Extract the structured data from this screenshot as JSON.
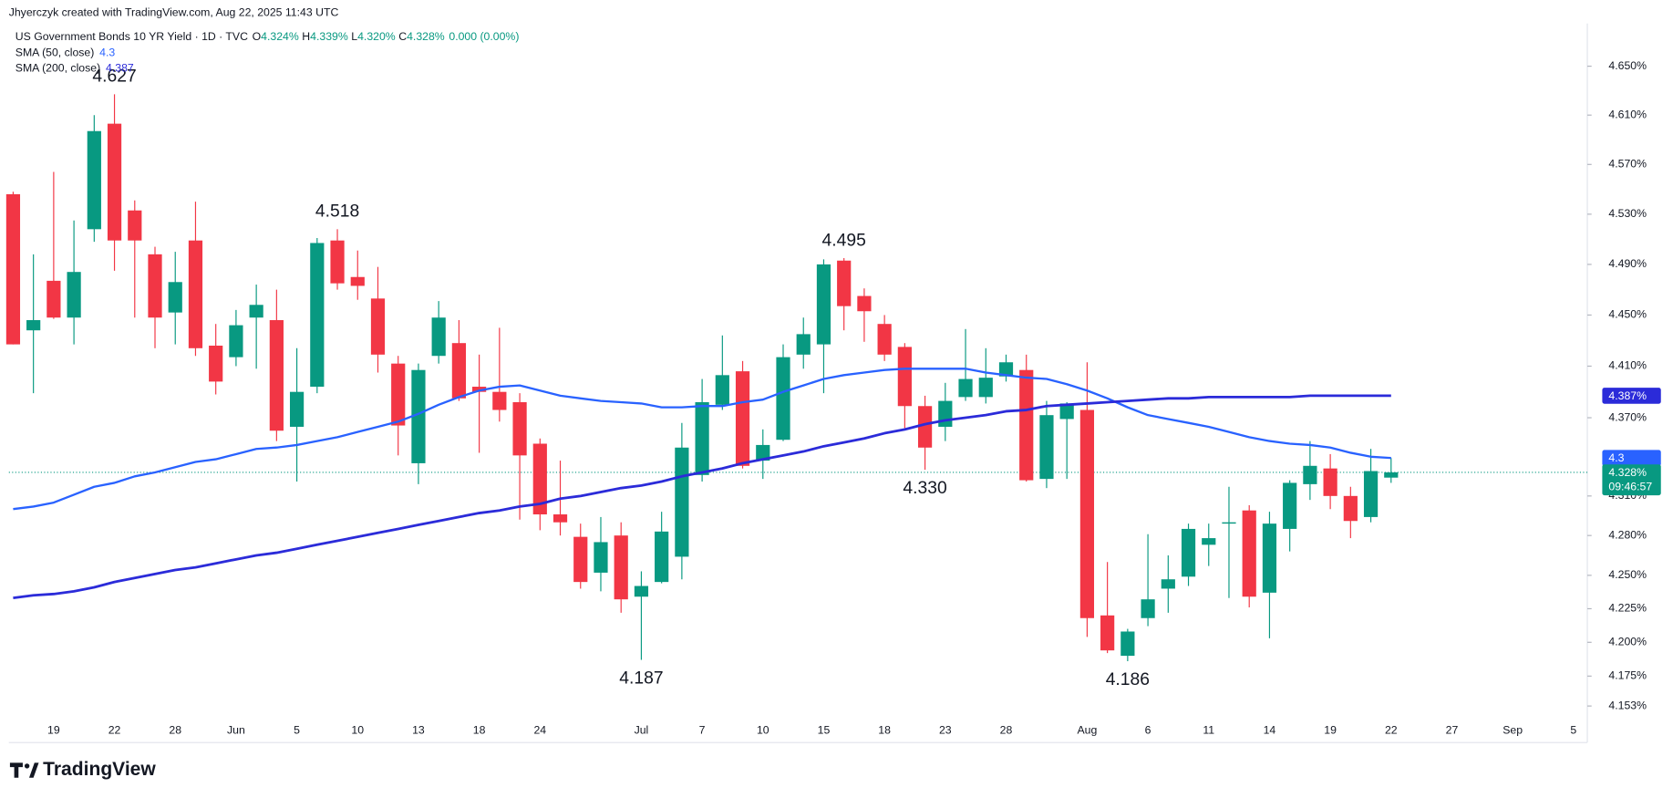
{
  "chart_data": {
    "type": "candlestick",
    "header": "Jhyerczyk created with TradingView.com, Aug 22, 2025 11:43 UTC",
    "legend": {
      "symbol": "US Government Bonds 10 YR Yield · 1D · TVC",
      "ohlc": [
        {
          "key": "O",
          "value": "4.324%"
        },
        {
          "key": "H",
          "value": "4.339%"
        },
        {
          "key": "L",
          "value": "4.320%"
        },
        {
          "key": "C",
          "value": "4.328%"
        }
      ],
      "change": "0.000 (0.00%)"
    },
    "categories": [
      null,
      null,
      "19",
      null,
      null,
      "22",
      null,
      null,
      "28",
      null,
      null,
      "Jun",
      null,
      null,
      "5",
      null,
      null,
      "10",
      null,
      null,
      "13",
      null,
      null,
      "18",
      null,
      null,
      "24",
      null,
      null,
      null,
      null,
      "Jul",
      null,
      null,
      "7",
      null,
      null,
      "10",
      null,
      null,
      "15",
      null,
      null,
      "18",
      null,
      null,
      "23",
      null,
      null,
      "28",
      null,
      null,
      null,
      "Aug",
      null,
      null,
      "6",
      null,
      null,
      "11",
      null,
      null,
      "14",
      null,
      null,
      "19",
      null,
      null,
      "22",
      null,
      null,
      "27",
      null,
      null,
      "Sep",
      null,
      null,
      "5"
    ],
    "open": [
      4.546,
      4.438,
      4.477,
      4.448,
      4.518,
      4.603,
      4.533,
      4.498,
      4.452,
      4.509,
      4.426,
      4.417,
      4.448,
      4.446,
      4.363,
      4.394,
      4.509,
      4.48,
      4.463,
      4.412,
      4.335,
      4.418,
      4.428,
      4.394,
      4.39,
      4.382,
      4.35,
      4.296,
      4.279,
      4.252,
      4.28,
      4.234,
      4.245,
      4.264,
      4.326,
      4.38,
      4.406,
      4.337,
      4.353,
      4.419,
      4.427,
      4.493,
      4.465,
      4.443,
      4.425,
      4.379,
      4.363,
      4.386,
      4.386,
      4.402,
      4.407,
      4.323,
      4.369,
      4.376,
      4.22,
      4.19,
      4.218,
      4.24,
      4.249,
      4.273,
      4.289,
      4.299,
      4.237,
      4.285,
      4.319,
      4.331,
      4.31,
      4.294,
      4.324,
      null,
      null,
      null,
      null,
      null,
      null,
      null,
      null,
      null
    ],
    "high": [
      4.548,
      4.498,
      4.564,
      4.525,
      4.61,
      4.627,
      4.541,
      4.504,
      4.5,
      4.54,
      4.443,
      4.454,
      4.474,
      4.47,
      4.424,
      4.511,
      4.518,
      4.501,
      4.488,
      4.418,
      4.412,
      4.461,
      4.446,
      4.419,
      4.44,
      4.389,
      4.354,
      4.337,
      4.289,
      4.294,
      4.29,
      4.253,
      4.298,
      4.366,
      4.4,
      4.434,
      4.414,
      4.361,
      4.427,
      4.448,
      4.494,
      4.495,
      4.471,
      4.45,
      4.428,
      4.387,
      4.397,
      4.439,
      4.424,
      4.419,
      4.419,
      4.383,
      4.382,
      4.413,
      4.26,
      4.21,
      4.281,
      4.265,
      4.289,
      4.289,
      4.317,
      4.303,
      4.298,
      4.322,
      4.352,
      4.342,
      4.317,
      4.346,
      4.339,
      null,
      null,
      null,
      null,
      null,
      null,
      null,
      null,
      null
    ],
    "low": [
      4.427,
      4.389,
      4.447,
      4.427,
      4.508,
      4.485,
      4.448,
      4.424,
      4.427,
      4.418,
      4.388,
      4.41,
      4.408,
      4.352,
      4.321,
      4.389,
      4.47,
      4.462,
      4.405,
      4.341,
      4.319,
      4.412,
      4.383,
      4.343,
      4.367,
      4.292,
      4.284,
      4.28,
      4.24,
      4.238,
      4.222,
      4.187,
      4.244,
      4.247,
      4.321,
      4.376,
      4.331,
      4.323,
      4.352,
      4.408,
      4.389,
      4.438,
      4.429,
      4.414,
      4.362,
      4.33,
      4.352,
      4.383,
      4.381,
      4.398,
      4.321,
      4.316,
      4.323,
      4.204,
      4.192,
      4.186,
      4.212,
      4.222,
      4.242,
      4.257,
      4.233,
      4.226,
      4.203,
      4.268,
      4.307,
      4.3,
      4.278,
      4.29,
      4.32,
      null,
      null,
      null,
      null,
      null,
      null,
      null,
      null,
      null
    ],
    "close": [
      4.427,
      4.446,
      4.448,
      4.484,
      4.597,
      4.509,
      4.509,
      4.448,
      4.476,
      4.424,
      4.398,
      4.442,
      4.458,
      4.36,
      4.39,
      4.507,
      4.475,
      4.473,
      4.419,
      4.364,
      4.407,
      4.448,
      4.385,
      4.39,
      4.376,
      4.341,
      4.296,
      4.29,
      4.245,
      4.275,
      4.232,
      4.242,
      4.283,
      4.347,
      4.382,
      4.403,
      4.333,
      4.349,
      4.417,
      4.435,
      4.49,
      4.457,
      4.453,
      4.419,
      4.379,
      4.347,
      4.383,
      4.4,
      4.401,
      4.413,
      4.322,
      4.372,
      4.381,
      4.218,
      4.194,
      4.208,
      4.232,
      4.247,
      4.285,
      4.278,
      4.29,
      4.234,
      4.289,
      4.32,
      4.333,
      4.31,
      4.291,
      4.329,
      4.328,
      null,
      null,
      null,
      null,
      null,
      null,
      null,
      null,
      null
    ],
    "up_color": "#089981",
    "down_color": "#f23645",
    "series": [
      {
        "name": "SMA (50, close)",
        "legend_value": "4.3",
        "color": "#2962ff",
        "values": [
          4.3,
          4.302,
          4.305,
          4.311,
          4.317,
          4.32,
          4.325,
          4.328,
          4.332,
          4.336,
          4.338,
          4.342,
          4.346,
          4.347,
          4.349,
          4.352,
          4.355,
          4.359,
          4.363,
          4.367,
          4.373,
          4.38,
          4.386,
          4.391,
          4.394,
          4.395,
          4.391,
          4.387,
          4.385,
          4.383,
          4.382,
          4.381,
          4.378,
          4.378,
          4.379,
          4.379,
          4.382,
          4.384,
          4.39,
          4.395,
          4.4,
          4.403,
          4.405,
          4.407,
          4.408,
          4.408,
          4.408,
          4.408,
          4.405,
          4.403,
          4.401,
          4.4,
          4.396,
          4.391,
          4.385,
          4.378,
          4.372,
          4.369,
          4.366,
          4.363,
          4.359,
          4.355,
          4.352,
          4.35,
          4.349,
          4.347,
          4.343,
          4.34,
          4.339,
          null,
          null,
          null,
          null,
          null,
          null,
          null,
          null,
          null
        ]
      },
      {
        "name": "SMA (200, close)",
        "legend_value": "4.387",
        "color": "#2b2bd9",
        "values": [
          4.233,
          4.235,
          4.236,
          4.238,
          4.241,
          4.245,
          4.248,
          4.251,
          4.254,
          4.256,
          4.259,
          4.262,
          4.265,
          4.267,
          4.27,
          4.273,
          4.276,
          4.279,
          4.282,
          4.285,
          4.288,
          4.291,
          4.294,
          4.297,
          4.299,
          4.302,
          4.304,
          4.308,
          4.31,
          4.313,
          4.316,
          4.318,
          4.321,
          4.325,
          4.328,
          4.331,
          4.335,
          4.338,
          4.341,
          4.344,
          4.348,
          4.351,
          4.354,
          4.358,
          4.361,
          4.365,
          4.368,
          4.37,
          4.372,
          4.375,
          4.376,
          4.379,
          4.38,
          4.381,
          4.382,
          4.383,
          4.384,
          4.385,
          4.385,
          4.386,
          4.386,
          4.386,
          4.386,
          4.386,
          4.387,
          4.387,
          4.387,
          4.387,
          4.387,
          null,
          null,
          null,
          null,
          null,
          null,
          null,
          null,
          null
        ]
      }
    ],
    "log_scale": true,
    "grid": false,
    "ylim": [
      4.145,
      4.687
    ],
    "yticks": [
      {
        "value": 4.65,
        "label": "4.650%"
      },
      {
        "value": 4.61,
        "label": "4.610%"
      },
      {
        "value": 4.57,
        "label": "4.570%"
      },
      {
        "value": 4.53,
        "label": "4.530%"
      },
      {
        "value": 4.49,
        "label": "4.490%"
      },
      {
        "value": 4.45,
        "label": "4.450%"
      },
      {
        "value": 4.41,
        "label": "4.410%"
      },
      {
        "value": 4.37,
        "label": "4.370%"
      },
      {
        "value": 4.31,
        "label": "4.310%"
      },
      {
        "value": 4.28,
        "label": "4.280%"
      },
      {
        "value": 4.25,
        "label": "4.250%"
      },
      {
        "value": 4.225,
        "label": "4.225%"
      },
      {
        "value": 4.2,
        "label": "4.200%"
      },
      {
        "value": 4.175,
        "label": "4.175%"
      },
      {
        "value": 4.153,
        "label": "4.153%"
      }
    ],
    "annotations": [
      {
        "value": 4.627,
        "label": "4.627"
      },
      {
        "value": 4.518,
        "label": "4.518"
      },
      {
        "value": 4.495,
        "label": "4.495"
      },
      {
        "value": 4.33,
        "label": "4.330"
      },
      {
        "value": 4.187,
        "label": "4.187"
      },
      {
        "value": 4.186,
        "label": "4.186"
      }
    ],
    "price_labels": [
      {
        "value": 4.339,
        "label": "4.3",
        "color": "#2962ff"
      },
      {
        "value": 4.387,
        "label": "4.387%",
        "color": "#2b2bd9"
      },
      {
        "value": 4.328,
        "label": "4.328%",
        "color": "#089981",
        "countdown": "09:46:57"
      }
    ],
    "branding": "TradingView"
  }
}
